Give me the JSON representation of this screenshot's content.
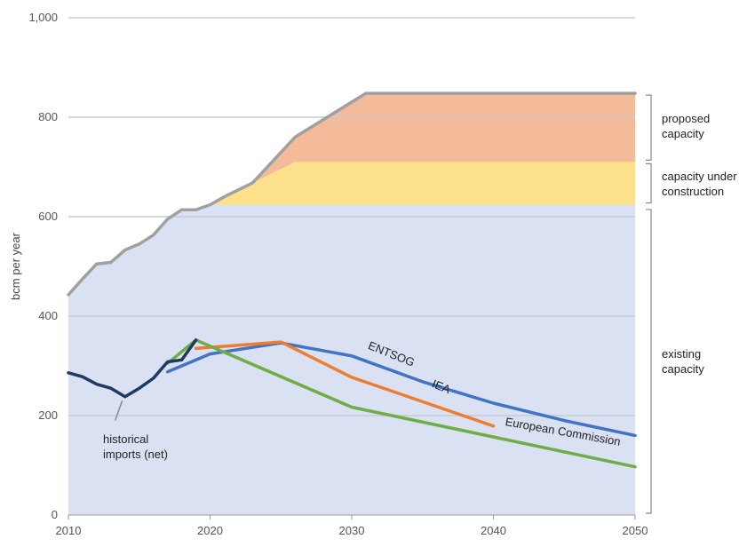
{
  "chart_data": {
    "type": "line",
    "ylabel": "bcm per year",
    "xlim": [
      2010,
      2050
    ],
    "ylim": [
      0,
      1000
    ],
    "x_ticks": [
      "2010",
      "2020",
      "2030",
      "2040",
      "2050"
    ],
    "y_ticks": [
      "0",
      "200",
      "400",
      "600",
      "800",
      "1,000"
    ],
    "grid": "horizontal",
    "legend": "none",
    "capacity_layers": [
      {
        "name": "existing capacity",
        "color": "#d9e1f2",
        "x": [
          2010,
          2011,
          2012,
          2013,
          2014,
          2015,
          2016,
          2017,
          2018,
          2019,
          2020,
          2050
        ],
        "y": [
          443,
          475,
          505,
          508,
          533,
          545,
          563,
          595,
          614,
          614,
          624,
          624
        ]
      },
      {
        "name": "capacity under construction",
        "color": "#fde08a",
        "x": [
          2020,
          2021,
          2023,
          2026,
          2050
        ],
        "y": [
          624,
          640,
          668,
          710,
          710
        ]
      },
      {
        "name": "proposed capacity",
        "color": "#f4bb9b",
        "x": [
          2023,
          2026,
          2031,
          2050
        ],
        "y": [
          668,
          760,
          848,
          848
        ]
      }
    ],
    "total_capacity_line": {
      "color": "#a0a0a0",
      "x": [
        2010,
        2011,
        2012,
        2013,
        2014,
        2015,
        2016,
        2017,
        2018,
        2019,
        2020,
        2021,
        2023,
        2026,
        2031,
        2050
      ],
      "y": [
        443,
        475,
        505,
        508,
        533,
        545,
        563,
        595,
        614,
        614,
        624,
        640,
        668,
        760,
        848,
        848
      ]
    },
    "series": [
      {
        "name": "ENTSOG",
        "color": "#4472c4",
        "x": [
          2017,
          2020,
          2025,
          2030,
          2035,
          2040,
          2045,
          2050
        ],
        "y": [
          288,
          324,
          346,
          320,
          268,
          225,
          190,
          160
        ]
      },
      {
        "name": "IEA",
        "color": "#ed7d31",
        "x": [
          2019,
          2025,
          2030,
          2040
        ],
        "y": [
          335,
          348,
          277,
          179
        ]
      },
      {
        "name": "European Commission",
        "color": "#70ad47",
        "x": [
          2017,
          2019,
          2030,
          2050
        ],
        "y": [
          305,
          352,
          217,
          97
        ]
      },
      {
        "name": "historical imports (net)",
        "color": "#203864",
        "x": [
          2010,
          2011,
          2012,
          2013,
          2014,
          2015,
          2016,
          2017,
          2018,
          2019
        ],
        "y": [
          286,
          278,
          263,
          255,
          238,
          255,
          275,
          308,
          312,
          352
        ]
      }
    ],
    "annotations": {
      "historical": "historical\nimports (net)",
      "entsog": "ENTSOG",
      "iea": "IEA",
      "ec": "European Commission",
      "proposed": "proposed\ncapacity",
      "construction": "capacity under\nconstruction",
      "existing": "existing\ncapacity"
    }
  }
}
